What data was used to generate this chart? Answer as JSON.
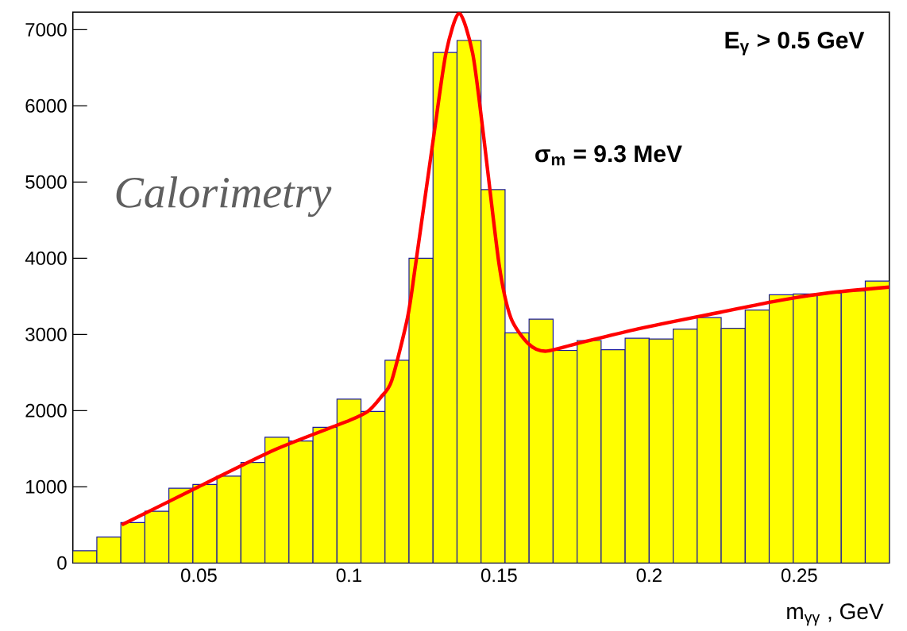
{
  "chart_data": {
    "type": "histogram",
    "xlabel": "m$_{γγ}$ , GeV",
    "annotations": [
      "E$_{γ}$ > 0.5 GeV",
      "σ$_{m}$ = 9.3 MeV",
      "Calorimetry"
    ],
    "bins": [
      0.008,
      0.016,
      0.024,
      0.032,
      0.04,
      0.048,
      0.056,
      0.064,
      0.072,
      0.08,
      0.088,
      0.096,
      0.104,
      0.112,
      0.12,
      0.128,
      0.136,
      0.144,
      0.152,
      0.16,
      0.168,
      0.176,
      0.184,
      0.192,
      0.2,
      0.208,
      0.216,
      0.224,
      0.232,
      0.24,
      0.248,
      0.256,
      0.264,
      0.272,
      0.28
    ],
    "values": [
      160,
      340,
      530,
      680,
      980,
      1030,
      1140,
      1320,
      1650,
      1600,
      1780,
      2150,
      1990,
      2660,
      4000,
      6700,
      6860,
      4900,
      3020,
      3200,
      2790,
      2920,
      2800,
      2950,
      2940,
      3070,
      3220,
      3080,
      3320,
      3520,
      3530,
      3540,
      3570,
      3700
    ],
    "color": "#ffff00",
    "series": [
      {
        "type": "line",
        "color": "#ff0000",
        "x": [
          0.0243,
          0.0499,
          0.0755,
          0.1001,
          0.1063,
          0.1107,
          0.1142,
          0.1195,
          0.1222,
          0.1284,
          0.1323,
          0.1367,
          0.1412,
          0.1447,
          0.15,
          0.1539,
          0.1597,
          0.1654,
          0.176,
          0.1972,
          0.2236,
          0.2412,
          0.2589,
          0.28
        ],
        "values": [
          500,
          1000,
          1490,
          1870,
          1990,
          2180,
          2390,
          3220,
          3920,
          5650,
          6690,
          7220,
          6690,
          5650,
          3920,
          3220,
          2880,
          2780,
          2880,
          3080,
          3290,
          3430,
          3540,
          3620
        ]
      }
    ],
    "xlim": [
      0.008,
      0.28
    ],
    "ylim": [
      0,
      7230
    ],
    "xticks": [
      0.05,
      0.1,
      0.15,
      0.2,
      0.25
    ],
    "yticks": [
      0,
      1000,
      2000,
      3000,
      4000,
      5000,
      6000,
      7000
    ],
    "grid": false
  }
}
